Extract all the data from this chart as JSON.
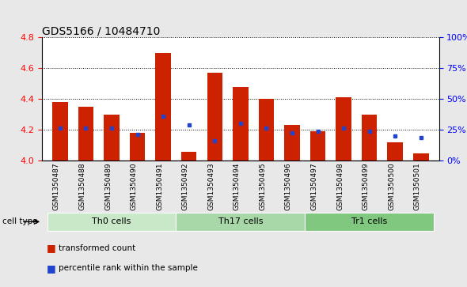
{
  "title": "GDS5166 / 10484710",
  "samples": [
    "GSM1350487",
    "GSM1350488",
    "GSM1350489",
    "GSM1350490",
    "GSM1350491",
    "GSM1350492",
    "GSM1350493",
    "GSM1350494",
    "GSM1350495",
    "GSM1350496",
    "GSM1350497",
    "GSM1350498",
    "GSM1350499",
    "GSM1350500",
    "GSM1350501"
  ],
  "bar_heights": [
    4.38,
    4.35,
    4.3,
    4.18,
    4.7,
    4.06,
    4.57,
    4.48,
    4.4,
    4.23,
    4.19,
    4.41,
    4.3,
    4.12,
    4.05
  ],
  "blue_dot_y": [
    4.21,
    4.21,
    4.21,
    4.17,
    4.29,
    4.23,
    4.13,
    4.24,
    4.21,
    4.18,
    4.19,
    4.21,
    4.19,
    4.16,
    4.15
  ],
  "bar_color": "#cc2200",
  "dot_color": "#2244cc",
  "ylim_left": [
    4.0,
    4.8
  ],
  "yticks_left": [
    4.0,
    4.2,
    4.4,
    4.6,
    4.8
  ],
  "yticks_right": [
    0,
    25,
    50,
    75,
    100
  ],
  "ytick_labels_right": [
    "0%",
    "25%",
    "50%",
    "75%",
    "100%"
  ],
  "cell_groups": [
    {
      "label": "Th0 cells",
      "start": 0,
      "end": 4,
      "color": "#c8e8c8"
    },
    {
      "label": "Th17 cells",
      "start": 5,
      "end": 9,
      "color": "#a8d8a8"
    },
    {
      "label": "Tr1 cells",
      "start": 10,
      "end": 14,
      "color": "#80c880"
    }
  ],
  "legend_items": [
    {
      "label": "transformed count",
      "color": "#cc2200"
    },
    {
      "label": "percentile rank within the sample",
      "color": "#2244cc"
    }
  ],
  "cell_type_label": "cell type",
  "bar_width": 0.6,
  "background_color": "#e8e8e8",
  "plot_bg": "#ffffff",
  "title_fontsize": 10,
  "tick_fontsize": 8,
  "sample_fontsize": 6.5
}
